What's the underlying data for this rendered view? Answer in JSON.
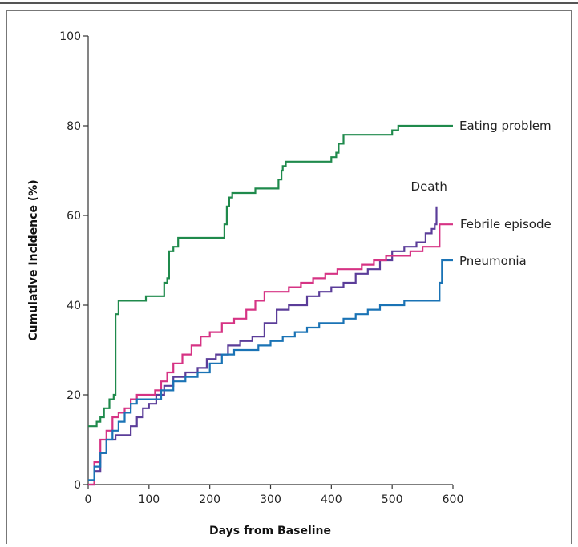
{
  "chart_data": {
    "type": "line",
    "title": "",
    "xlabel": "Days from Baseline",
    "ylabel": "Cumulative Incidence (%)",
    "xlim": [
      0,
      600
    ],
    "ylim": [
      0,
      100
    ],
    "xticks": [
      0,
      100,
      200,
      300,
      400,
      500,
      600
    ],
    "yticks": [
      0,
      20,
      40,
      60,
      80,
      100
    ],
    "grid": false,
    "legend": "direct labels at line ends",
    "series": [
      {
        "name": "Eating problem",
        "color": "#1f8a4c",
        "points": [
          [
            0,
            13
          ],
          [
            12,
            13
          ],
          [
            14,
            14
          ],
          [
            20,
            15
          ],
          [
            26,
            17
          ],
          [
            32,
            17
          ],
          [
            35,
            19
          ],
          [
            42,
            20
          ],
          [
            45,
            38
          ],
          [
            50,
            41
          ],
          [
            60,
            41
          ],
          [
            90,
            41
          ],
          [
            95,
            42
          ],
          [
            120,
            42
          ],
          [
            125,
            45
          ],
          [
            130,
            46
          ],
          [
            133,
            52
          ],
          [
            140,
            53
          ],
          [
            148,
            55
          ],
          [
            220,
            55
          ],
          [
            224,
            58
          ],
          [
            228,
            62
          ],
          [
            232,
            64
          ],
          [
            237,
            65
          ],
          [
            270,
            65
          ],
          [
            275,
            66
          ],
          [
            310,
            66
          ],
          [
            313,
            68
          ],
          [
            318,
            70
          ],
          [
            320,
            71
          ],
          [
            325,
            72
          ],
          [
            395,
            72
          ],
          [
            400,
            73
          ],
          [
            408,
            74
          ],
          [
            412,
            76
          ],
          [
            420,
            78
          ],
          [
            495,
            78
          ],
          [
            500,
            79
          ],
          [
            510,
            80
          ],
          [
            600,
            80
          ]
        ]
      },
      {
        "name": "Death",
        "color": "#5b3d99",
        "points": [
          [
            0,
            0
          ],
          [
            10,
            3
          ],
          [
            20,
            7
          ],
          [
            30,
            10
          ],
          [
            45,
            11
          ],
          [
            60,
            11
          ],
          [
            70,
            13
          ],
          [
            80,
            15
          ],
          [
            90,
            17
          ],
          [
            100,
            18
          ],
          [
            112,
            20
          ],
          [
            125,
            22
          ],
          [
            140,
            24
          ],
          [
            160,
            25
          ],
          [
            180,
            26
          ],
          [
            195,
            28
          ],
          [
            210,
            29
          ],
          [
            230,
            31
          ],
          [
            250,
            32
          ],
          [
            270,
            33
          ],
          [
            290,
            36
          ],
          [
            310,
            39
          ],
          [
            330,
            40
          ],
          [
            360,
            42
          ],
          [
            380,
            43
          ],
          [
            400,
            44
          ],
          [
            420,
            45
          ],
          [
            440,
            47
          ],
          [
            460,
            48
          ],
          [
            480,
            50
          ],
          [
            500,
            52
          ],
          [
            520,
            53
          ],
          [
            540,
            54
          ],
          [
            555,
            56
          ],
          [
            565,
            57
          ],
          [
            570,
            58
          ],
          [
            573,
            62
          ]
        ]
      },
      {
        "name": "Febrile episode",
        "color": "#d63384",
        "points": [
          [
            0,
            0
          ],
          [
            10,
            5
          ],
          [
            20,
            10
          ],
          [
            30,
            12
          ],
          [
            40,
            15
          ],
          [
            50,
            16
          ],
          [
            60,
            17
          ],
          [
            70,
            19
          ],
          [
            80,
            20
          ],
          [
            100,
            20
          ],
          [
            110,
            21
          ],
          [
            120,
            23
          ],
          [
            130,
            25
          ],
          [
            140,
            27
          ],
          [
            155,
            29
          ],
          [
            170,
            31
          ],
          [
            185,
            33
          ],
          [
            200,
            34
          ],
          [
            220,
            36
          ],
          [
            240,
            37
          ],
          [
            260,
            39
          ],
          [
            275,
            41
          ],
          [
            290,
            43
          ],
          [
            310,
            43
          ],
          [
            330,
            44
          ],
          [
            350,
            45
          ],
          [
            370,
            46
          ],
          [
            390,
            47
          ],
          [
            410,
            48
          ],
          [
            430,
            48
          ],
          [
            450,
            49
          ],
          [
            470,
            50
          ],
          [
            490,
            51
          ],
          [
            510,
            51
          ],
          [
            530,
            52
          ],
          [
            550,
            53
          ],
          [
            575,
            53
          ],
          [
            578,
            58
          ],
          [
            600,
            58
          ]
        ]
      },
      {
        "name": "Pneumonia",
        "color": "#1a73b5",
        "points": [
          [
            0,
            1
          ],
          [
            10,
            4
          ],
          [
            20,
            7
          ],
          [
            30,
            10
          ],
          [
            40,
            12
          ],
          [
            50,
            14
          ],
          [
            60,
            16
          ],
          [
            70,
            18
          ],
          [
            80,
            19
          ],
          [
            100,
            19
          ],
          [
            120,
            21
          ],
          [
            140,
            23
          ],
          [
            160,
            24
          ],
          [
            180,
            25
          ],
          [
            200,
            27
          ],
          [
            220,
            29
          ],
          [
            240,
            30
          ],
          [
            260,
            30
          ],
          [
            280,
            31
          ],
          [
            300,
            32
          ],
          [
            320,
            33
          ],
          [
            340,
            34
          ],
          [
            360,
            35
          ],
          [
            380,
            36
          ],
          [
            400,
            36
          ],
          [
            420,
            37
          ],
          [
            440,
            38
          ],
          [
            460,
            39
          ],
          [
            480,
            40
          ],
          [
            500,
            40
          ],
          [
            520,
            41
          ],
          [
            575,
            41
          ],
          [
            578,
            45
          ],
          [
            582,
            50
          ],
          [
            600,
            50
          ]
        ]
      }
    ]
  }
}
